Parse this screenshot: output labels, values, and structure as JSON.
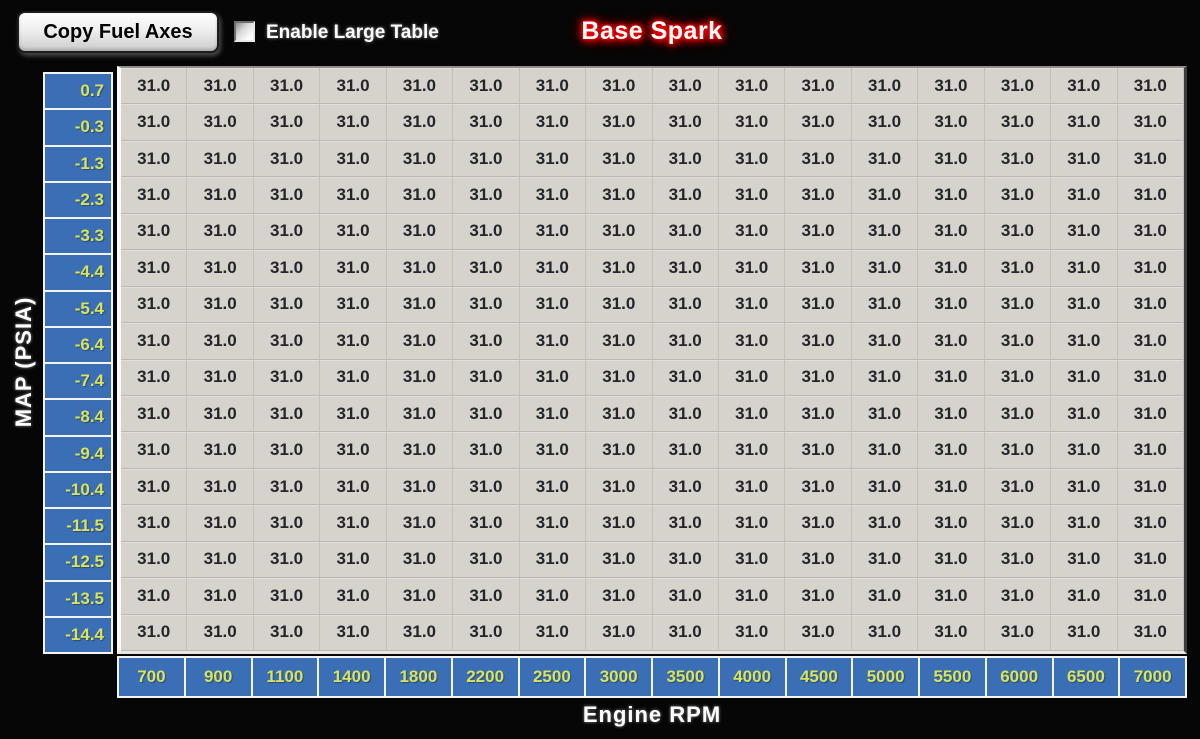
{
  "title": "Base Spark",
  "toolbar": {
    "copy_fuel_axes_label": "Copy Fuel Axes",
    "enable_large_table_label": "Enable Large Table",
    "enable_large_table_checked": false
  },
  "y_axis": {
    "label": "MAP (PSIA)",
    "values": [
      "0.7",
      "-0.3",
      "-1.3",
      "-2.3",
      "-3.3",
      "-4.4",
      "-5.4",
      "-6.4",
      "-7.4",
      "-8.4",
      "-9.4",
      "-10.4",
      "-11.5",
      "-12.5",
      "-13.5",
      "-14.4"
    ]
  },
  "x_axis": {
    "label": "Engine RPM",
    "values": [
      "700",
      "900",
      "1100",
      "1400",
      "1800",
      "2200",
      "2500",
      "3000",
      "3500",
      "4000",
      "4500",
      "5000",
      "5500",
      "6000",
      "6500",
      "7000"
    ]
  },
  "table": {
    "values": [
      [
        "31.0",
        "31.0",
        "31.0",
        "31.0",
        "31.0",
        "31.0",
        "31.0",
        "31.0",
        "31.0",
        "31.0",
        "31.0",
        "31.0",
        "31.0",
        "31.0",
        "31.0",
        "31.0"
      ],
      [
        "31.0",
        "31.0",
        "31.0",
        "31.0",
        "31.0",
        "31.0",
        "31.0",
        "31.0",
        "31.0",
        "31.0",
        "31.0",
        "31.0",
        "31.0",
        "31.0",
        "31.0",
        "31.0"
      ],
      [
        "31.0",
        "31.0",
        "31.0",
        "31.0",
        "31.0",
        "31.0",
        "31.0",
        "31.0",
        "31.0",
        "31.0",
        "31.0",
        "31.0",
        "31.0",
        "31.0",
        "31.0",
        "31.0"
      ],
      [
        "31.0",
        "31.0",
        "31.0",
        "31.0",
        "31.0",
        "31.0",
        "31.0",
        "31.0",
        "31.0",
        "31.0",
        "31.0",
        "31.0",
        "31.0",
        "31.0",
        "31.0",
        "31.0"
      ],
      [
        "31.0",
        "31.0",
        "31.0",
        "31.0",
        "31.0",
        "31.0",
        "31.0",
        "31.0",
        "31.0",
        "31.0",
        "31.0",
        "31.0",
        "31.0",
        "31.0",
        "31.0",
        "31.0"
      ],
      [
        "31.0",
        "31.0",
        "31.0",
        "31.0",
        "31.0",
        "31.0",
        "31.0",
        "31.0",
        "31.0",
        "31.0",
        "31.0",
        "31.0",
        "31.0",
        "31.0",
        "31.0",
        "31.0"
      ],
      [
        "31.0",
        "31.0",
        "31.0",
        "31.0",
        "31.0",
        "31.0",
        "31.0",
        "31.0",
        "31.0",
        "31.0",
        "31.0",
        "31.0",
        "31.0",
        "31.0",
        "31.0",
        "31.0"
      ],
      [
        "31.0",
        "31.0",
        "31.0",
        "31.0",
        "31.0",
        "31.0",
        "31.0",
        "31.0",
        "31.0",
        "31.0",
        "31.0",
        "31.0",
        "31.0",
        "31.0",
        "31.0",
        "31.0"
      ],
      [
        "31.0",
        "31.0",
        "31.0",
        "31.0",
        "31.0",
        "31.0",
        "31.0",
        "31.0",
        "31.0",
        "31.0",
        "31.0",
        "31.0",
        "31.0",
        "31.0",
        "31.0",
        "31.0"
      ],
      [
        "31.0",
        "31.0",
        "31.0",
        "31.0",
        "31.0",
        "31.0",
        "31.0",
        "31.0",
        "31.0",
        "31.0",
        "31.0",
        "31.0",
        "31.0",
        "31.0",
        "31.0",
        "31.0"
      ],
      [
        "31.0",
        "31.0",
        "31.0",
        "31.0",
        "31.0",
        "31.0",
        "31.0",
        "31.0",
        "31.0",
        "31.0",
        "31.0",
        "31.0",
        "31.0",
        "31.0",
        "31.0",
        "31.0"
      ],
      [
        "31.0",
        "31.0",
        "31.0",
        "31.0",
        "31.0",
        "31.0",
        "31.0",
        "31.0",
        "31.0",
        "31.0",
        "31.0",
        "31.0",
        "31.0",
        "31.0",
        "31.0",
        "31.0"
      ],
      [
        "31.0",
        "31.0",
        "31.0",
        "31.0",
        "31.0",
        "31.0",
        "31.0",
        "31.0",
        "31.0",
        "31.0",
        "31.0",
        "31.0",
        "31.0",
        "31.0",
        "31.0",
        "31.0"
      ],
      [
        "31.0",
        "31.0",
        "31.0",
        "31.0",
        "31.0",
        "31.0",
        "31.0",
        "31.0",
        "31.0",
        "31.0",
        "31.0",
        "31.0",
        "31.0",
        "31.0",
        "31.0",
        "31.0"
      ],
      [
        "31.0",
        "31.0",
        "31.0",
        "31.0",
        "31.0",
        "31.0",
        "31.0",
        "31.0",
        "31.0",
        "31.0",
        "31.0",
        "31.0",
        "31.0",
        "31.0",
        "31.0",
        "31.0"
      ],
      [
        "31.0",
        "31.0",
        "31.0",
        "31.0",
        "31.0",
        "31.0",
        "31.0",
        "31.0",
        "31.0",
        "31.0",
        "31.0",
        "31.0",
        "31.0",
        "31.0",
        "31.0",
        "31.0"
      ]
    ]
  },
  "colors": {
    "axis_blue": "#3b6fb5",
    "axis_text_yellow": "#d9e35b",
    "table_bg": "#d6d3cc",
    "table_text": "#23252b",
    "title_glow_red": "#ff0000",
    "background": "#060606"
  }
}
